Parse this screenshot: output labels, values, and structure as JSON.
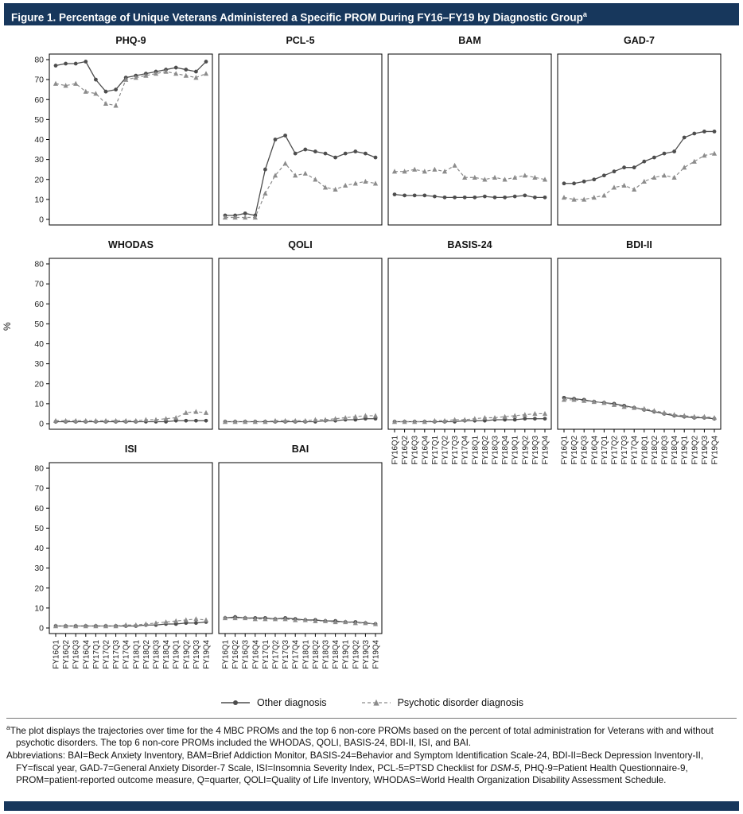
{
  "header": {
    "title": "Figure 1. Percentage of Unique Veterans Administered a Specific PROM During FY16–FY19 by Diagnostic Group",
    "superscript": "a"
  },
  "colors": {
    "header_bg": "#17375c",
    "other_series": "#4d4d4d",
    "psychotic_series": "#8c8c8c",
    "frame": "#000000"
  },
  "legend": {
    "items": [
      {
        "key": "other",
        "label": "Other diagnosis",
        "marker": "circle",
        "line": "solid"
      },
      {
        "key": "psychotic",
        "label": "Psychotic disorder diagnosis",
        "marker": "triangle",
        "line": "dashed"
      }
    ]
  },
  "footnotes": {
    "a_marker": "a",
    "a_text": "The plot displays the trajectories over time for the 4 MBC PROMs and the top 6 non-core PROMs based on the percent of total administration for Veterans with and without psychotic disorders. The top 6 non-core PROMs included the WHODAS, QOLI, BASIS-24, BDI-II, ISI, and BAI.",
    "abbr_before": "Abbreviations: BAI=Beck Anxiety Inventory, BAM=Brief Addiction Monitor, BASIS-24=Behavior and Symptom Identification Scale-24, BDI-II=Beck Depression Inventory-II, FY=fiscal year, GAD-7=General Anxiety Disorder-7 Scale, ISI=Insomnia Severity Index, PCL-5=PTSD Checklist for ",
    "abbr_italic": "DSM-5",
    "abbr_after": ", PHQ-9=Patient Health Questionnaire-9, PROM=patient-reported outcome measure, Q=quarter, QOLI=Quality of Life Inventory, WHODAS=World Health Organization Disability Assessment Schedule."
  },
  "chart_data": {
    "type": "line",
    "ylabel": "%",
    "ylim": [
      0,
      80
    ],
    "yticks": [
      0,
      10,
      20,
      30,
      40,
      50,
      60,
      70,
      80
    ],
    "grid": false,
    "legend_position": "bottom",
    "x": [
      "FY16Q1",
      "FY16Q2",
      "FY16Q3",
      "FY16Q4",
      "FY17Q1",
      "FY17Q2",
      "FY17Q3",
      "FY17Q4",
      "FY18Q1",
      "FY18Q2",
      "FY18Q3",
      "FY18Q4",
      "FY19Q1",
      "FY19Q2",
      "FY19Q3",
      "FY19Q4"
    ],
    "series_names": [
      "Other diagnosis",
      "Psychotic disorder diagnosis"
    ],
    "panels": [
      {
        "title": "PHQ-9",
        "show_y": true,
        "show_x": false,
        "series": {
          "other": [
            77,
            78,
            78,
            79,
            70,
            64,
            65,
            71,
            72,
            73,
            74,
            75,
            76,
            75,
            74,
            79
          ],
          "psychotic": [
            68,
            67,
            68,
            64,
            63,
            58,
            57,
            70,
            71,
            72,
            73,
            74,
            73,
            72,
            71,
            73
          ]
        }
      },
      {
        "title": "PCL-5",
        "show_y": false,
        "show_x": false,
        "series": {
          "other": [
            2,
            2,
            3,
            2,
            25,
            40,
            42,
            33,
            35,
            34,
            33,
            31,
            33,
            34,
            33,
            31
          ],
          "psychotic": [
            1,
            1,
            1,
            1,
            13,
            22,
            28,
            22,
            23,
            20,
            16,
            15,
            17,
            18,
            19,
            18
          ]
        }
      },
      {
        "title": "BAM",
        "show_y": false,
        "show_x": false,
        "series": {
          "other": [
            12.5,
            12,
            12,
            12,
            11.5,
            11,
            11,
            11,
            11,
            11.5,
            11,
            11,
            11.5,
            12,
            11,
            11
          ],
          "psychotic": [
            24,
            24,
            25,
            24,
            25,
            24,
            27,
            21,
            21,
            20,
            21,
            20,
            21,
            22,
            21,
            20
          ]
        }
      },
      {
        "title": "GAD-7",
        "show_y": false,
        "show_x": false,
        "series": {
          "other": [
            18,
            18,
            19,
            20,
            22,
            24,
            26,
            26,
            29,
            31,
            33,
            34,
            41,
            43,
            44,
            44
          ],
          "psychotic": [
            11,
            10,
            10,
            11,
            12,
            16,
            17,
            15,
            19,
            21,
            22,
            21,
            26,
            29,
            32,
            33
          ]
        }
      },
      {
        "title": "WHODAS",
        "show_y": true,
        "show_x": false,
        "series": {
          "other": [
            1,
            1,
            1,
            1,
            1,
            1,
            1,
            1,
            1,
            1,
            1,
            1,
            1.5,
            1.5,
            1.5,
            1.5
          ],
          "psychotic": [
            1.5,
            1.5,
            1.5,
            1.5,
            1.5,
            1.5,
            1.5,
            1.5,
            1.5,
            2,
            2,
            2.5,
            3,
            5.5,
            6,
            5.5
          ]
        }
      },
      {
        "title": "QOLI",
        "show_y": false,
        "show_x": false,
        "series": {
          "other": [
            1,
            1,
            1,
            1,
            1,
            1,
            1,
            1,
            1,
            1,
            1.5,
            1.5,
            2,
            2,
            2.5,
            2.5
          ],
          "psychotic": [
            1,
            1,
            1,
            1,
            1,
            1.5,
            1.5,
            1.5,
            1.5,
            2,
            2,
            2.5,
            3,
            3.5,
            4,
            4
          ]
        }
      },
      {
        "title": "BASIS-24",
        "show_y": false,
        "show_x": true,
        "series": {
          "other": [
            1,
            1,
            1,
            1,
            1,
            1,
            1,
            1.5,
            1.5,
            1.5,
            2,
            2,
            2,
            2.5,
            2.5,
            2.5
          ],
          "psychotic": [
            1,
            1,
            1,
            1,
            1.5,
            1.5,
            2,
            2,
            2.5,
            3,
            3,
            3.5,
            4,
            4.5,
            5,
            5
          ]
        }
      },
      {
        "title": "BDI-II",
        "show_y": false,
        "show_x": true,
        "series": {
          "other": [
            13,
            12.5,
            12,
            11,
            10.5,
            10,
            9,
            8,
            7,
            6,
            5,
            4,
            3.5,
            3,
            3,
            2.5
          ],
          "psychotic": [
            12,
            12,
            11.5,
            11,
            10.5,
            9.5,
            8.5,
            8,
            7.5,
            6.5,
            5.5,
            4.5,
            4,
            3.5,
            3.5,
            3
          ]
        }
      },
      {
        "title": "ISI",
        "show_y": true,
        "show_x": true,
        "series": {
          "other": [
            1,
            1,
            1,
            1,
            1,
            1,
            1,
            1,
            1,
            1.5,
            1.5,
            2,
            2,
            2.5,
            2.5,
            3
          ],
          "psychotic": [
            1,
            1,
            1,
            1,
            1,
            1,
            1,
            1.5,
            1.5,
            2,
            2.5,
            3,
            3.5,
            4,
            4.5,
            4
          ]
        }
      },
      {
        "title": "BAI",
        "show_y": false,
        "show_x": true,
        "series": {
          "other": [
            5,
            5.5,
            5,
            5,
            5,
            4.5,
            5,
            4.5,
            4,
            4,
            3.5,
            3.5,
            3,
            3,
            2.5,
            2
          ],
          "psychotic": [
            5,
            5,
            5,
            4.5,
            4.5,
            4.5,
            4.5,
            4,
            4,
            3.5,
            3.5,
            3,
            3,
            2.5,
            2.5,
            2
          ]
        }
      }
    ]
  }
}
